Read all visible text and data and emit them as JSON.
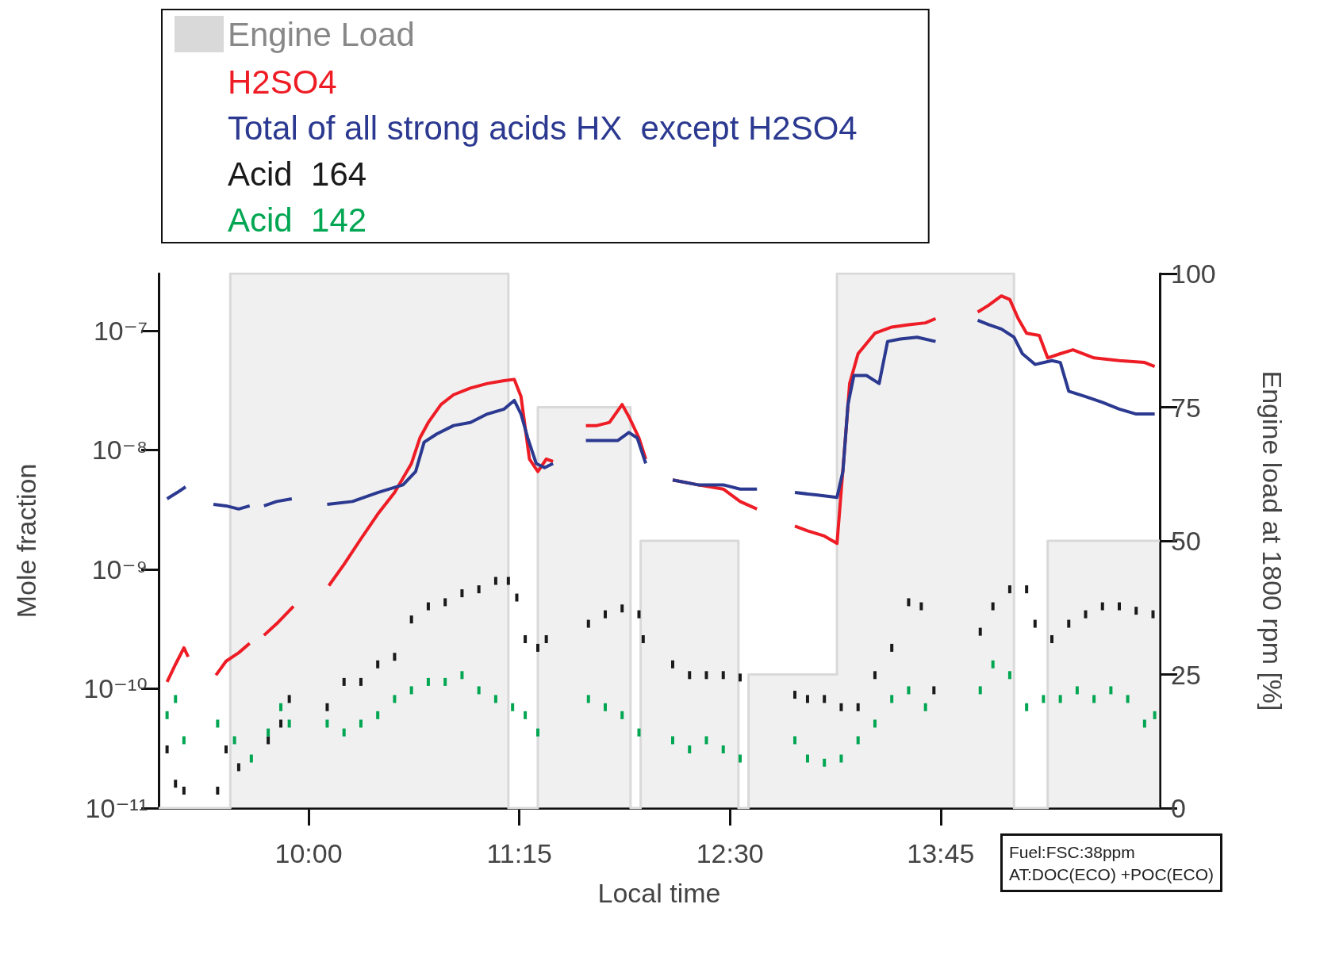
{
  "chart_data": {
    "type": "line",
    "xlabel": "Local time",
    "ylabel": "Mole fraction",
    "y2label": "Engine load at 1800 rpm [%]",
    "annotations": [
      "Fuel:FSC:38ppm\nAT:DOC(ECO) +POC(ECO)"
    ],
    "log": true,
    "grid": false,
    "legend": "top left",
    "xlim": [
      9.11,
      15.05
    ],
    "xticks": [
      {
        "value": 10,
        "label": "10:00"
      },
      {
        "value": 11.25,
        "label": "11:15"
      },
      {
        "value": 12.5,
        "label": "12:30"
      },
      {
        "value": 13.75,
        "label": "13:45"
      }
    ],
    "ylim": [
      1e-11,
      3e-07
    ],
    "yticks": [
      {
        "value": 1e-11,
        "label": "10⁻¹¹"
      },
      {
        "value": 1e-10,
        "label": "10⁻¹⁰"
      },
      {
        "value": 1e-09,
        "label": "10⁻⁹"
      },
      {
        "value": 1e-08,
        "label": "10⁻⁸"
      },
      {
        "value": 1e-07,
        "label": "10⁻⁷"
      }
    ],
    "y2lim": [
      0,
      100
    ],
    "y2ticks": [
      0,
      25,
      50,
      75,
      100
    ],
    "series": [
      {
        "name": "Engine Load",
        "type": "area",
        "axis": "y2",
        "color": "#d9d9d9",
        "x": [
          9.11,
          9.535,
          9.535,
          11.185,
          11.185,
          11.36,
          11.36,
          11.91,
          11.91,
          11.97,
          11.97,
          12.55,
          12.55,
          12.61,
          12.61,
          13.135,
          13.135,
          14.185,
          14.185,
          14.385,
          14.385,
          15.05
        ],
        "values": [
          0,
          0,
          100,
          100,
          0,
          0,
          75,
          75,
          0,
          0,
          50,
          50,
          0,
          0,
          25,
          25,
          100,
          100,
          0,
          0,
          50,
          50
        ]
      },
      {
        "name": "H2SO4",
        "color": "#ee1c25",
        "x": [
          9.16,
          9.21,
          9.26,
          9.285,
          9.36,
          9.45,
          9.51,
          9.585,
          9.65,
          9.7,
          9.735,
          9.81,
          9.885,
          9.91,
          10.0,
          10.12,
          10.21,
          10.31,
          10.41,
          10.51,
          10.61,
          10.66,
          10.71,
          10.785,
          10.86,
          10.96,
          11.06,
          11.16,
          11.22,
          11.26,
          11.31,
          11.36,
          11.41,
          11.45,
          11.55,
          11.645,
          11.71,
          11.785,
          11.86,
          11.9,
          11.96,
          12.0,
          12.08,
          12.16,
          12.31,
          12.46,
          12.56,
          12.66,
          12.78,
          12.885,
          12.96,
          13.06,
          13.135,
          13.185,
          13.21,
          13.26,
          13.36,
          13.46,
          13.56,
          13.66,
          13.72,
          13.85,
          13.97,
          14.035,
          14.11,
          14.16,
          14.21,
          14.26,
          14.335,
          14.385,
          14.46,
          14.535,
          14.66,
          14.81,
          14.96,
          15.02
        ],
        "values": [
          1.14e-10,
          1.6e-10,
          2.2e-10,
          1.85e-10,
          null,
          1.3e-10,
          1.7e-10,
          2e-10,
          2.4e-10,
          null,
          2.8e-10,
          3.5e-10,
          4.5e-10,
          4.9e-10,
          null,
          7.3e-10,
          1.1e-09,
          1.8e-09,
          2.9e-09,
          4.4e-09,
          7.7e-09,
          1.26e-08,
          1.7e-08,
          2.4e-08,
          2.9e-08,
          3.3e-08,
          3.6e-08,
          3.8e-08,
          3.9e-08,
          2.8e-08,
          8.4e-09,
          6.6e-09,
          8.4e-09,
          8e-09,
          null,
          1.6e-08,
          1.6e-08,
          1.7e-08,
          2.4e-08,
          1.9e-08,
          1.26e-08,
          8.4e-09,
          null,
          5.6e-09,
          5.1e-09,
          4.7e-09,
          3.7e-09,
          3.2e-09,
          null,
          2.3e-09,
          2.1e-09,
          1.9e-09,
          1.65e-09,
          1.26e-08,
          3.6e-08,
          6.4e-08,
          9.5e-08,
          1.07e-07,
          1.12e-07,
          1.16e-07,
          1.26e-07,
          null,
          1.43e-07,
          1.63e-07,
          1.95e-07,
          1.82e-07,
          1.26e-07,
          9.5e-08,
          9.1e-08,
          5.9e-08,
          6.4e-08,
          6.9e-08,
          5.9e-08,
          5.6e-08,
          5.4e-08,
          5e-08
        ]
      },
      {
        "name": "Total of all strong acids HX  except H2SO4",
        "color": "#2b3990",
        "x": [
          9.16,
          9.22,
          9.27,
          9.36,
          9.435,
          9.51,
          9.585,
          9.65,
          9.7,
          9.735,
          9.81,
          9.9,
          10.0,
          10.11,
          10.26,
          10.41,
          10.56,
          10.635,
          10.685,
          10.76,
          10.86,
          10.96,
          11.06,
          11.16,
          11.22,
          11.26,
          11.3,
          11.35,
          11.4,
          11.45,
          11.55,
          11.645,
          11.735,
          11.835,
          11.9,
          11.95,
          12.0,
          12.08,
          12.16,
          12.31,
          12.46,
          12.56,
          12.66,
          12.78,
          12.885,
          13.01,
          13.135,
          13.17,
          13.2,
          13.235,
          13.31,
          13.385,
          13.435,
          13.51,
          13.61,
          13.72,
          13.85,
          13.97,
          14.035,
          14.11,
          14.185,
          14.235,
          14.31,
          14.41,
          14.46,
          14.51,
          14.61,
          14.71,
          14.81,
          14.91,
          15.02
        ],
        "values": [
          3.9e-09,
          4.4e-09,
          4.9e-09,
          null,
          3.5e-09,
          3.4e-09,
          3.2e-09,
          3.4e-09,
          null,
          3.4e-09,
          3.7e-09,
          3.9e-09,
          null,
          3.5e-09,
          3.7e-09,
          4.4e-09,
          5.1e-09,
          6.6e-09,
          1.16e-08,
          1.36e-08,
          1.6e-08,
          1.7e-08,
          2e-08,
          2.2e-08,
          2.6e-08,
          2e-08,
          1.26e-08,
          7.7e-09,
          7.1e-09,
          7.7e-09,
          null,
          1.2e-08,
          1.2e-08,
          1.2e-08,
          1.4e-08,
          1.26e-08,
          7.7e-09,
          null,
          5.6e-09,
          5.1e-09,
          5.1e-09,
          4.7e-09,
          4.7e-09,
          null,
          4.4e-09,
          4.2e-09,
          4e-09,
          6.6e-09,
          2.4e-08,
          4.2e-08,
          4.2e-08,
          3.6e-08,
          8.1e-08,
          8.5e-08,
          8.8e-08,
          8.1e-08,
          null,
          1.22e-07,
          1.12e-07,
          1.03e-07,
          8.8e-08,
          6.4e-08,
          5.2e-08,
          5.6e-08,
          5.4e-08,
          3.1e-08,
          2.8e-08,
          2.5e-08,
          2.2e-08,
          2e-08,
          2e-08
        ]
      },
      {
        "name": "Acid  164",
        "type": "scatter",
        "color": "#1a1a1a",
        "x": [
          9.16,
          9.21,
          9.26,
          9.46,
          9.51,
          9.585,
          9.76,
          9.835,
          9.885,
          10.11,
          10.21,
          10.31,
          10.41,
          10.51,
          10.61,
          10.71,
          10.81,
          10.91,
          11.01,
          11.11,
          11.185,
          11.235,
          11.285,
          11.36,
          11.41,
          11.66,
          11.76,
          11.86,
          11.96,
          11.985,
          12.16,
          12.26,
          12.36,
          12.46,
          12.56,
          12.885,
          12.96,
          13.06,
          13.16,
          13.26,
          13.36,
          13.46,
          13.56,
          13.635,
          13.71,
          13.985,
          14.06,
          14.16,
          14.26,
          14.31,
          14.41,
          14.51,
          14.61,
          14.71,
          14.81,
          14.91,
          15.01
        ],
        "values": [
          3.1e-11,
          1.6e-11,
          1.4e-11,
          1.4e-11,
          3.1e-11,
          2.2e-11,
          3.7e-11,
          5.1e-11,
          8.2e-11,
          7e-11,
          1.14e-10,
          1.14e-10,
          1.6e-10,
          1.85e-10,
          3.8e-10,
          4.9e-10,
          5.3e-10,
          6.3e-10,
          6.8e-10,
          8e-10,
          8e-10,
          5.8e-10,
          2.6e-10,
          2.2e-10,
          2.6e-10,
          3.5e-10,
          4.2e-10,
          4.7e-10,
          4.2e-10,
          2.6e-10,
          1.6e-10,
          1.3e-10,
          1.3e-10,
          1.3e-10,
          1.24e-10,
          8.9e-11,
          8.2e-11,
          8.2e-11,
          7e-11,
          7e-11,
          1.3e-10,
          2.2e-10,
          5.3e-10,
          4.9e-10,
          9.7e-11,
          3e-10,
          4.9e-10,
          6.8e-10,
          6.8e-10,
          3.5e-10,
          2.6e-10,
          3.5e-10,
          4.2e-10,
          4.9e-10,
          4.9e-10,
          4.5e-10,
          4.2e-10
        ]
      },
      {
        "name": "Acid  142",
        "type": "scatter",
        "color": "#00a651",
        "x": [
          9.16,
          9.21,
          9.26,
          9.46,
          9.56,
          9.66,
          9.76,
          9.835,
          9.885,
          10.11,
          10.21,
          10.31,
          10.41,
          10.51,
          10.61,
          10.71,
          10.81,
          10.91,
          11.01,
          11.11,
          11.21,
          11.285,
          11.36,
          11.66,
          11.76,
          11.86,
          11.96,
          12.16,
          12.26,
          12.36,
          12.46,
          12.56,
          12.885,
          12.96,
          13.06,
          13.16,
          13.26,
          13.36,
          13.46,
          13.56,
          13.66,
          13.985,
          14.06,
          14.16,
          14.26,
          14.36,
          14.46,
          14.56,
          14.66,
          14.76,
          14.86,
          14.96,
          15.02
        ],
        "values": [
          6e-11,
          8.2e-11,
          3.7e-11,
          5.1e-11,
          3.7e-11,
          2.6e-11,
          4.3e-11,
          7e-11,
          5.1e-11,
          5.1e-11,
          4.3e-11,
          5.1e-11,
          6e-11,
          8.2e-11,
          9.7e-11,
          1.14e-10,
          1.14e-10,
          1.3e-10,
          9.7e-11,
          8.2e-11,
          7e-11,
          6e-11,
          4.3e-11,
          8.2e-11,
          7e-11,
          6e-11,
          4.3e-11,
          3.7e-11,
          3.1e-11,
          3.7e-11,
          3.1e-11,
          2.6e-11,
          3.7e-11,
          2.6e-11,
          2.4e-11,
          2.6e-11,
          3.7e-11,
          5.1e-11,
          8.2e-11,
          9.7e-11,
          7e-11,
          9.7e-11,
          1.6e-10,
          1.3e-10,
          7e-11,
          8.2e-11,
          8.2e-11,
          9.7e-11,
          8.2e-11,
          9.7e-11,
          8.2e-11,
          5.1e-11,
          6e-11
        ]
      }
    ]
  }
}
